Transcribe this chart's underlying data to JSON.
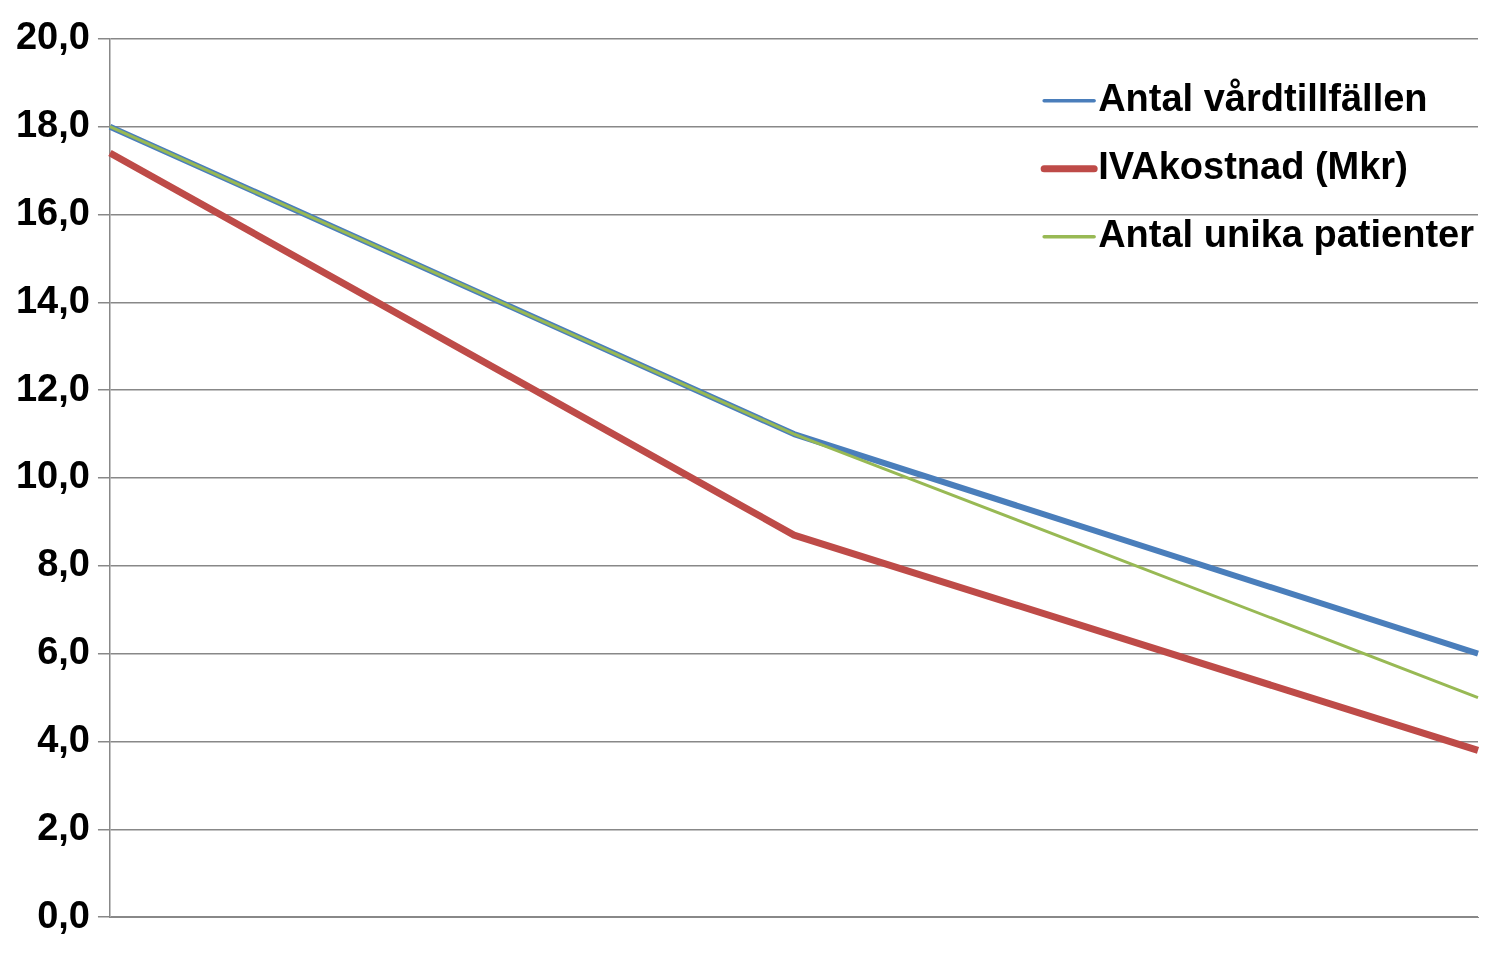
{
  "chart_data": {
    "type": "line",
    "categories": [
      null,
      null,
      null
    ],
    "series": [
      {
        "name": "Antal vårdtillfällen",
        "color": "#4a7ebb",
        "values": [
          18.0,
          11.0,
          6.0
        ]
      },
      {
        "name": "IVAkostnad (Mkr)",
        "color": "#be4b48",
        "values": [
          17.4,
          8.7,
          3.8
        ]
      },
      {
        "name": "Antal unika patienter",
        "color": "#98b954",
        "values": [
          18.0,
          11.0,
          5.0
        ]
      }
    ],
    "ylim": [
      0,
      20
    ],
    "yticks": [
      {
        "value": 0,
        "label": "0,0"
      },
      {
        "value": 2,
        "label": "2,0"
      },
      {
        "value": 4,
        "label": "4,0"
      },
      {
        "value": 6,
        "label": "6,0"
      },
      {
        "value": 8,
        "label": "8,0"
      },
      {
        "value": 10,
        "label": "10,0"
      },
      {
        "value": 12,
        "label": "12,0"
      },
      {
        "value": 14,
        "label": "14,0"
      },
      {
        "value": 16,
        "label": "16,0"
      },
      {
        "value": 18,
        "label": "18,0"
      },
      {
        "value": 20,
        "label": "20,0"
      }
    ],
    "grid": "y",
    "legend": "top right",
    "marker": "none",
    "line_style": "solid",
    "tick_labels": "y"
  }
}
